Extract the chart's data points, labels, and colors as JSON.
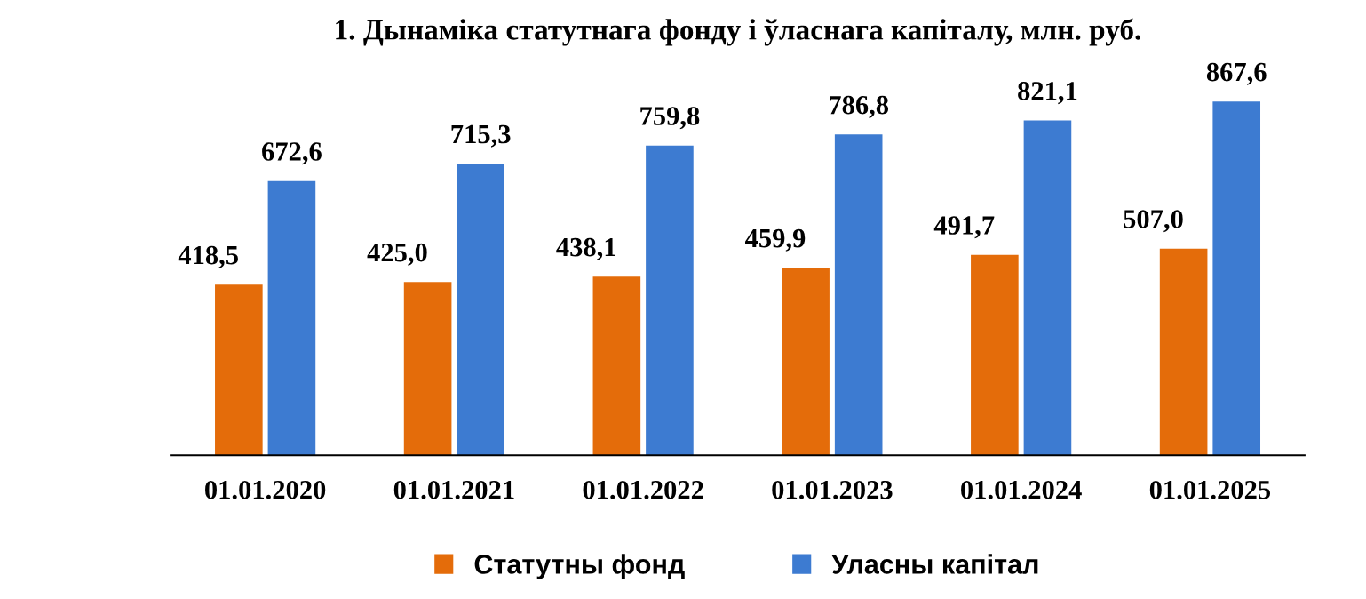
{
  "chart_data": {
    "type": "bar",
    "title": "1. Дынаміка статутнага фонду і ўласнага капіталу, млн. руб.",
    "categories": [
      "01.01.2020",
      "01.01.2021",
      "01.01.2022",
      "01.01.2023",
      "01.01.2024",
      "01.01.2025"
    ],
    "series": [
      {
        "name": "Статутны фонд",
        "color": "#e46c0a",
        "values": [
          418.5,
          425.0,
          438.1,
          459.9,
          491.7,
          507.0
        ],
        "value_labels": [
          "418,5",
          "425,0",
          "438,1",
          "459,9",
          "491,7",
          "507,0"
        ]
      },
      {
        "name": "Уласны капітал",
        "color": "#3d7bd1",
        "values": [
          672.6,
          715.3,
          759.8,
          786.8,
          821.1,
          867.6
        ],
        "value_labels": [
          "672,6",
          "715,3",
          "759,8",
          "786,8",
          "821,1",
          "867,6"
        ]
      }
    ],
    "grid": false,
    "legend": "bottom"
  }
}
